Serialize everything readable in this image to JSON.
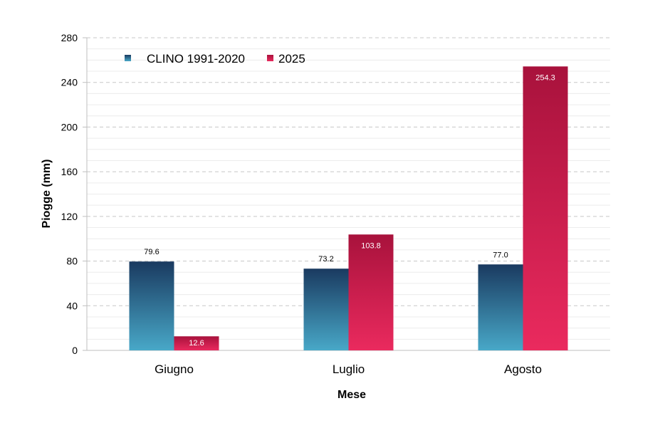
{
  "chart_data": {
    "type": "bar",
    "categories": [
      "Giugno",
      "Luglio",
      "Agosto"
    ],
    "series": [
      {
        "name": "CLINO 1991-2020",
        "values": [
          79.6,
          73.2,
          77.0
        ],
        "labels": [
          "79.6",
          "73.2",
          "77.0"
        ]
      },
      {
        "name": "2025",
        "values": [
          12.6,
          103.8,
          254.3
        ],
        "labels": [
          "12.6",
          "103.8",
          "254.3"
        ]
      }
    ],
    "xlabel": "Mese",
    "ylabel": "Piogge (mm)",
    "ylim": [
      0,
      280
    ],
    "yticks": [
      0,
      40,
      80,
      120,
      160,
      200,
      240,
      280
    ],
    "grid": "dashed horizontal",
    "legend_position": "top-left",
    "colors": {
      "clino_top": "#1a3a60",
      "clino_bottom": "#48a8c8",
      "y2025_top": "#a8123c",
      "y2025_bottom": "#ea2a5e",
      "grid": "#c8c8c8",
      "axis": "#bfbfbf"
    }
  }
}
